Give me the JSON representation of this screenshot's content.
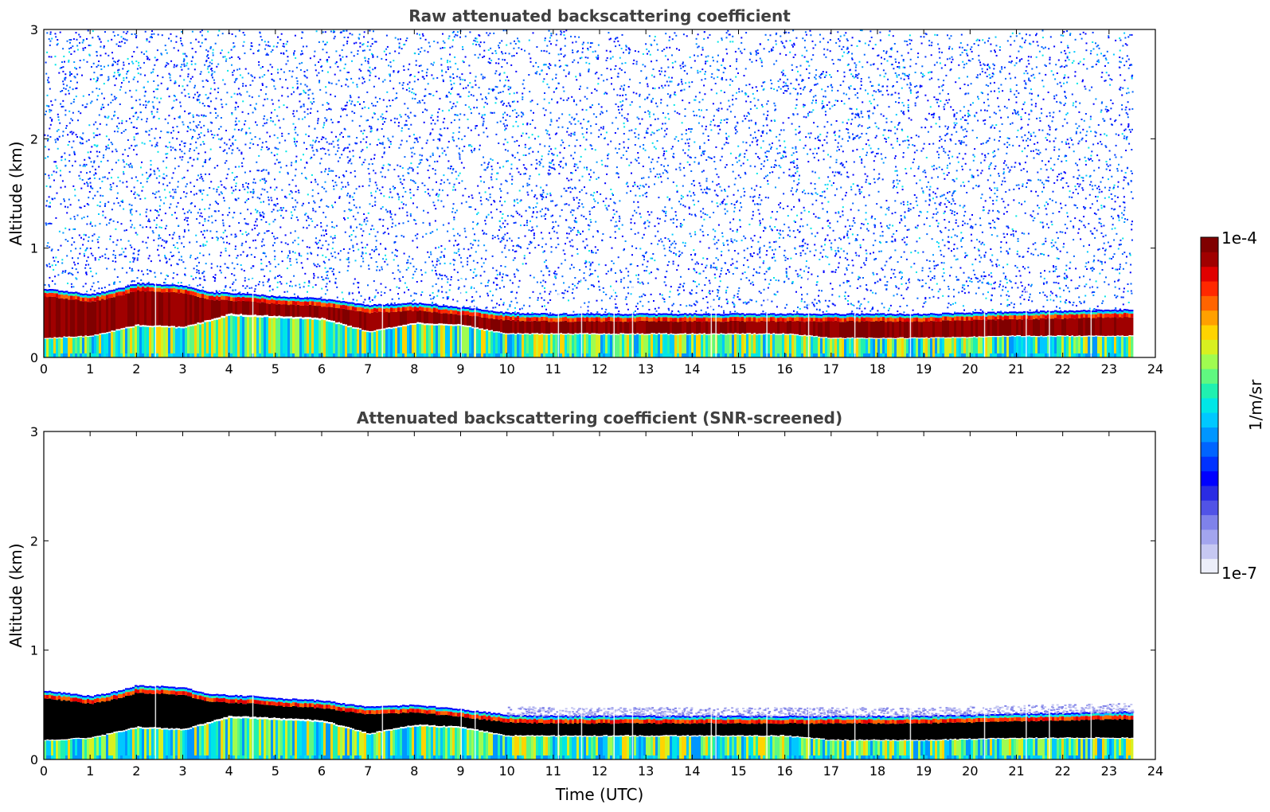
{
  "chart_data": [
    {
      "type": "heatmap",
      "id": "raw",
      "title": "Raw attenuated backscattering coefficient",
      "xlabel": "",
      "ylabel": "Altitude (km)",
      "xlim": [
        0,
        24
      ],
      "ylim": [
        0,
        3
      ],
      "xticks": [
        "0",
        "1",
        "2",
        "3",
        "4",
        "5",
        "6",
        "7",
        "8",
        "9",
        "10",
        "11",
        "12",
        "13",
        "14",
        "15",
        "16",
        "17",
        "18",
        "19",
        "20",
        "21",
        "22",
        "23",
        "24"
      ],
      "yticks": [
        "0",
        "1",
        "2",
        "3"
      ],
      "data_end_hour": 23.5,
      "cloud_top_km": [
        [
          0,
          0.63
        ],
        [
          1,
          0.58
        ],
        [
          1.5,
          0.62
        ],
        [
          2,
          0.68
        ],
        [
          3,
          0.66
        ],
        [
          3.5,
          0.6
        ],
        [
          4.5,
          0.58
        ],
        [
          5,
          0.56
        ],
        [
          6,
          0.54
        ],
        [
          7,
          0.48
        ],
        [
          8,
          0.5
        ],
        [
          9,
          0.46
        ],
        [
          10,
          0.41
        ],
        [
          11,
          0.4
        ],
        [
          13,
          0.4
        ],
        [
          14.5,
          0.4
        ],
        [
          16,
          0.4
        ],
        [
          17,
          0.4
        ],
        [
          19,
          0.4
        ],
        [
          21,
          0.42
        ],
        [
          23.5,
          0.44
        ]
      ],
      "layer_base_km": [
        [
          0,
          0.18
        ],
        [
          1,
          0.2
        ],
        [
          2,
          0.3
        ],
        [
          3,
          0.28
        ],
        [
          4,
          0.4
        ],
        [
          5,
          0.38
        ],
        [
          6,
          0.36
        ],
        [
          7,
          0.24
        ],
        [
          8,
          0.32
        ],
        [
          9,
          0.3
        ],
        [
          10,
          0.22
        ],
        [
          11,
          0.22
        ],
        [
          13,
          0.22
        ],
        [
          14.5,
          0.22
        ],
        [
          16,
          0.22
        ],
        [
          17,
          0.18
        ],
        [
          19,
          0.18
        ],
        [
          21,
          0.2
        ],
        [
          23.5,
          0.2
        ]
      ],
      "noise_above": true,
      "screened": false
    },
    {
      "type": "heatmap",
      "id": "screened",
      "title": "Attenuated backscattering coefficient (SNR-screened)",
      "xlabel": "Time (UTC)",
      "ylabel": "Altitude (km)",
      "xlim": [
        0,
        24
      ],
      "ylim": [
        0,
        3
      ],
      "xticks": [
        "0",
        "1",
        "2",
        "3",
        "4",
        "5",
        "6",
        "7",
        "8",
        "9",
        "10",
        "11",
        "12",
        "13",
        "14",
        "15",
        "16",
        "17",
        "18",
        "19",
        "20",
        "21",
        "22",
        "23",
        "24"
      ],
      "yticks": [
        "0",
        "1",
        "2",
        "3"
      ],
      "data_end_hour": 23.5,
      "cloud_top_km": [
        [
          0,
          0.63
        ],
        [
          1,
          0.58
        ],
        [
          1.5,
          0.62
        ],
        [
          2,
          0.68
        ],
        [
          3,
          0.66
        ],
        [
          3.5,
          0.6
        ],
        [
          4.5,
          0.58
        ],
        [
          5,
          0.56
        ],
        [
          6,
          0.54
        ],
        [
          7,
          0.48
        ],
        [
          8,
          0.5
        ],
        [
          9,
          0.46
        ],
        [
          10,
          0.41
        ],
        [
          11,
          0.4
        ],
        [
          13,
          0.4
        ],
        [
          14.5,
          0.4
        ],
        [
          16,
          0.4
        ],
        [
          17,
          0.4
        ],
        [
          19,
          0.4
        ],
        [
          21,
          0.42
        ],
        [
          23.5,
          0.44
        ]
      ],
      "layer_base_km": [
        [
          0,
          0.18
        ],
        [
          1,
          0.2
        ],
        [
          2,
          0.3
        ],
        [
          3,
          0.28
        ],
        [
          4,
          0.4
        ],
        [
          5,
          0.38
        ],
        [
          6,
          0.36
        ],
        [
          7,
          0.24
        ],
        [
          8,
          0.32
        ],
        [
          9,
          0.3
        ],
        [
          10,
          0.22
        ],
        [
          11,
          0.22
        ],
        [
          13,
          0.22
        ],
        [
          14.5,
          0.22
        ],
        [
          16,
          0.22
        ],
        [
          17,
          0.18
        ],
        [
          19,
          0.18
        ],
        [
          21,
          0.2
        ],
        [
          23.5,
          0.2
        ]
      ],
      "noise_above": false,
      "screened": true
    }
  ],
  "colorbar": {
    "max_label": "1e-4",
    "min_label": "1e-7",
    "unit_label": "1/m/sr",
    "colors": [
      "#eceef9",
      "#c6c8f2",
      "#a3a5ee",
      "#7f82ea",
      "#5153e6",
      "#2a2ce3",
      "#0000ff",
      "#0032ff",
      "#0064ff",
      "#0096ff",
      "#00c8ff",
      "#00e6e6",
      "#20f0b0",
      "#60f880",
      "#a0fc50",
      "#d8f020",
      "#ffd400",
      "#ffa000",
      "#ff6400",
      "#ff2800",
      "#e00000",
      "#a00000",
      "#800000"
    ]
  },
  "screened_black": "#000000"
}
